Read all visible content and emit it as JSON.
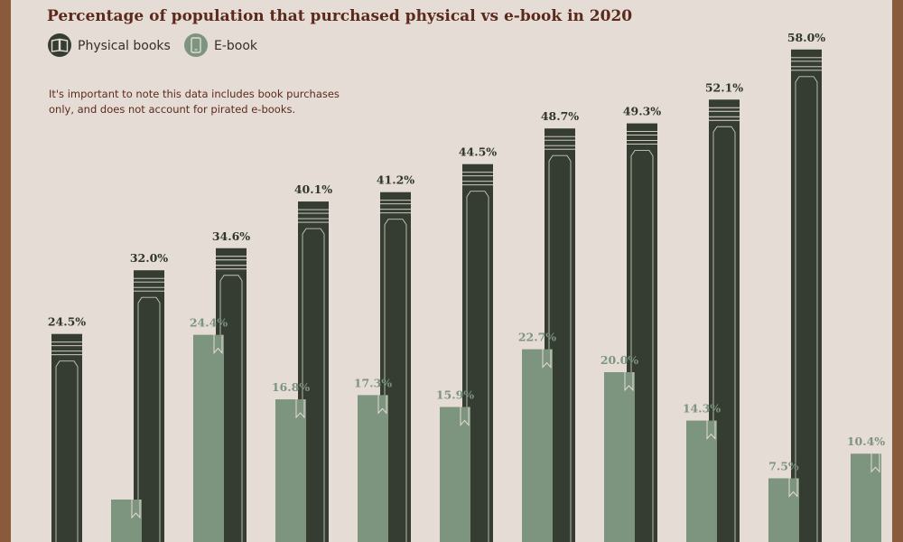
{
  "title": "Percentage of population that purchased physical vs e-book in 2020",
  "legend": [
    {
      "label": "Physical books",
      "icon": "open-book-icon",
      "color": "#353d32"
    },
    {
      "label": "E-book",
      "icon": "tablet-icon",
      "color": "#7d947f"
    }
  ],
  "note": [
    "It's important to note this data includes book purchases",
    "only, and does not account for pirated e-books."
  ],
  "colors": {
    "background": "#e5dcd5",
    "frame": "#8a5a3c",
    "physical": "#353d32",
    "ebook": "#7d947f",
    "title": "#5c2a1c"
  },
  "chart_data": {
    "type": "bar",
    "title": "Percentage of population that purchased physical vs e-book in 2020",
    "xlabel": "",
    "ylabel": "",
    "ylim": [
      0,
      60
    ],
    "grid": false,
    "legend_position": "top-left",
    "series": [
      {
        "name": "Physical books",
        "values": [
          24.5,
          32.0,
          34.6,
          40.1,
          41.2,
          44.5,
          48.7,
          49.3,
          52.1,
          58.0
        ],
        "labels": [
          "24.5%",
          "32.0%",
          "34.6%",
          "40.1%",
          "41.2%",
          "44.5%",
          "48.7%",
          "49.3%",
          "52.1%",
          "58.0%"
        ]
      },
      {
        "name": "E-book",
        "values": [
          5.0,
          24.4,
          16.8,
          17.3,
          15.9,
          22.7,
          20.0,
          14.3,
          7.5,
          10.4
        ],
        "labels": [
          "",
          "24.4%",
          "16.8%",
          "17.3%",
          "15.9%",
          "22.7%",
          "20.0%",
          "14.3%",
          "7.5%",
          "10.4%"
        ]
      }
    ]
  }
}
